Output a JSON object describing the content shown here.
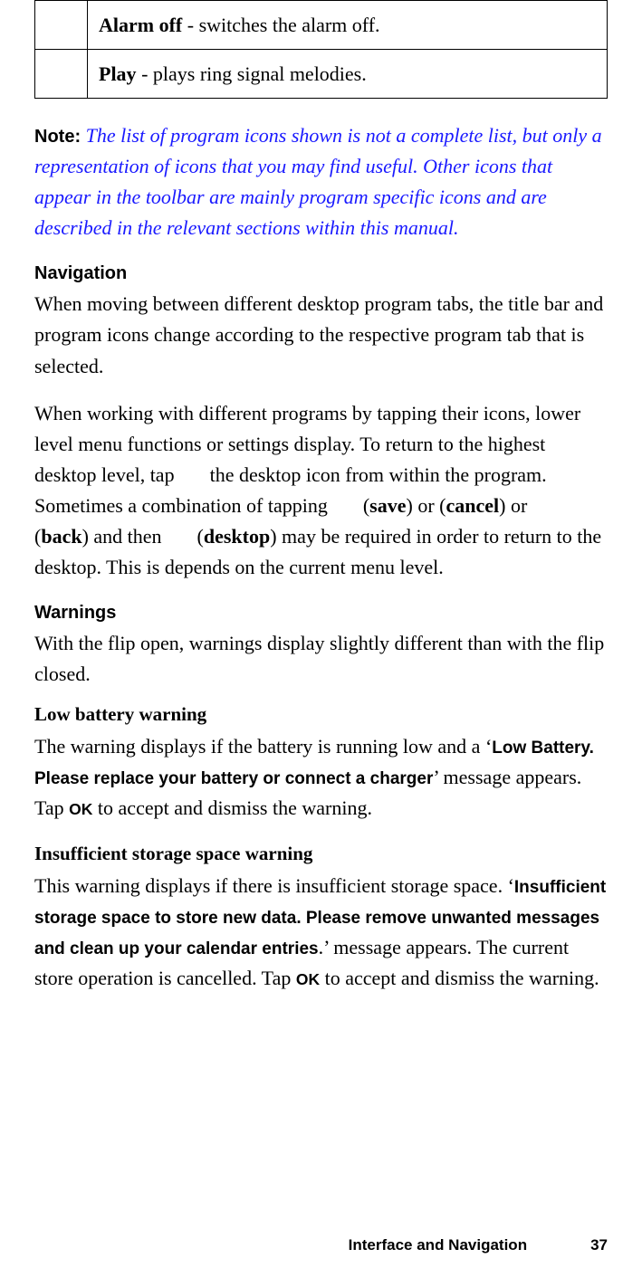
{
  "table": {
    "rows": [
      {
        "term": "Alarm off",
        "desc": " - switches the alarm off."
      },
      {
        "term": "Play",
        "desc": " - plays ring signal melodies."
      }
    ]
  },
  "note": {
    "label": "Note:  ",
    "body": "The list of program icons shown is not a complete list, but only a representation of icons that you may find useful. Other icons that appear in the toolbar are mainly program specific icons and are described in the relevant sections within this manual."
  },
  "navigation": {
    "heading": "Navigation",
    "para1": "When moving between different desktop program tabs, the title bar and program icons change according to the respective program tab that is selected.",
    "para2": {
      "t1": "When working with different programs by tapping their icons, lower level menu functions or settings display. To return to the highest desktop level, tap ",
      "t2": " the desktop icon from within the program. Sometimes a combination of tapping ",
      "t3": " (",
      "save": "save",
      "t4": ") or ",
      "t5": " (",
      "cancel": "cancel",
      "t6": ") or ",
      "t7": " (",
      "back": "back",
      "t8": ") and then ",
      "t9": " (",
      "desktop": "desktop",
      "t10": ") may be required in order to return to the desktop. This is depends on the current menu level."
    }
  },
  "warnings": {
    "heading": "Warnings",
    "intro": "With the flip open, warnings display slightly different than with the flip closed.",
    "low_battery": {
      "heading": "Low battery warning",
      "t1": "The warning displays if the battery is running low and a ‘",
      "msg": "Low Battery. Please replace your battery or connect a charger",
      "t2": "’ message appears. Tap ",
      "ok": "OK",
      "t3": " to accept and dismiss the warning."
    },
    "storage": {
      "heading": "Insufficient storage space warning",
      "t1": "This warning displays if there is insufficient storage space. ‘",
      "msg": "Insufficient storage space to store new data. Please remove unwanted messages and clean up your calendar entries",
      "t2": ".’ message appears. The current store operation is cancelled. Tap ",
      "ok": "OK",
      "t3": " to accept and dismiss the warning."
    }
  },
  "footer": {
    "section": "Interface and Navigation",
    "page": "37"
  }
}
